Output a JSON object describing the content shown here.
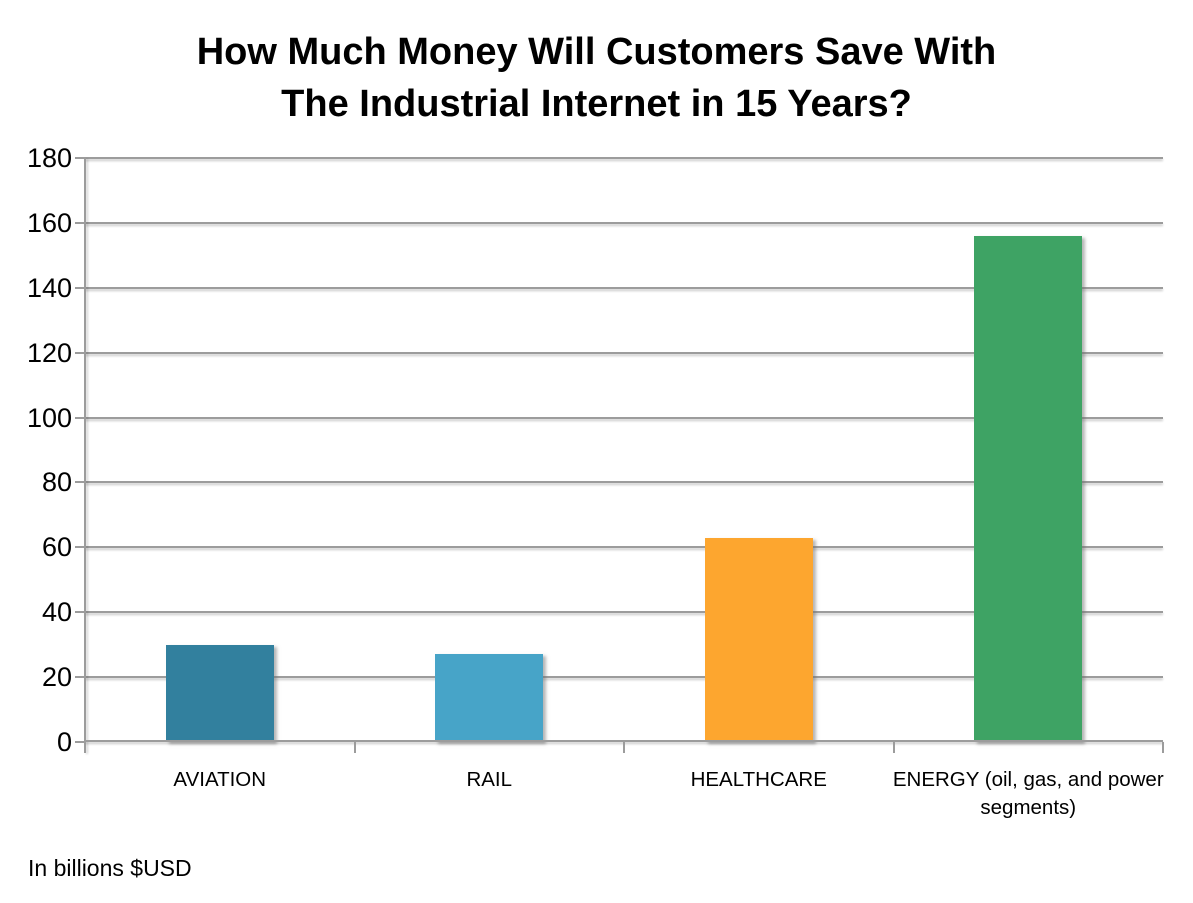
{
  "title": {
    "line1": "How Much Money Will Customers Save With",
    "line2": "The Industrial Internet in 15 Years?"
  },
  "footnote": "In billions $USD",
  "chart_data": {
    "type": "bar",
    "title": "How Much Money Will Customers Save With The Industrial Internet in 15 Years?",
    "categories": [
      "AVIATION",
      "RAIL",
      "HEALTHCARE",
      "ENERGY (oil, gas, and power segments)"
    ],
    "values": [
      30,
      27,
      63,
      156
    ],
    "bar_colors": [
      "#32809e",
      "#47a4c8",
      "#fda62f",
      "#3ea364"
    ],
    "xlabel": "",
    "ylabel": "",
    "unit_note": "In billions $USD",
    "ylim": [
      0,
      180
    ],
    "yticks": [
      0,
      20,
      40,
      60,
      80,
      100,
      120,
      140,
      160,
      180
    ],
    "grid": true,
    "legend": "none"
  },
  "colors": {
    "background": "#ffffff",
    "axis": "#9c9c9c",
    "gridline": "#9c9c9c",
    "title_text": "#000000",
    "label_text": "#000000"
  }
}
